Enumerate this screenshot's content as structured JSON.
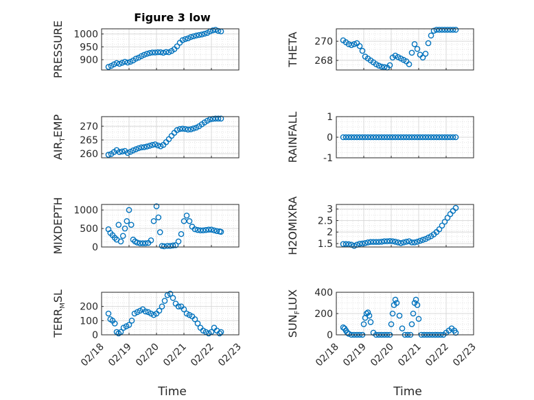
{
  "title": "Figure 3 low",
  "xlabel": "Time",
  "marker_color": "#0072BD",
  "chart_data": [
    {
      "type": "scatter",
      "name": "PRESSURE",
      "ylabel_parts": [
        "PRESSURE"
      ],
      "ylim": [
        860,
        1020
      ],
      "yticks": [
        900,
        950,
        1000
      ],
      "xlim": [
        0,
        5
      ],
      "xtick_labels": [
        "02/18",
        "02/19",
        "02/20",
        "02/21",
        "02/22",
        "02/23"
      ],
      "show_xticklabels": false,
      "x": [
        0.25,
        0.35,
        0.45,
        0.55,
        0.65,
        0.75,
        0.85,
        0.95,
        1.05,
        1.15,
        1.25,
        1.35,
        1.45,
        1.55,
        1.65,
        1.75,
        1.85,
        1.95,
        2.05,
        2.15,
        2.25,
        2.35,
        2.45,
        2.55,
        2.65,
        2.75,
        2.85,
        2.95,
        3.05,
        3.15,
        3.25,
        3.35,
        3.45,
        3.55,
        3.65,
        3.75,
        3.85,
        3.95,
        4.05,
        4.15,
        4.25,
        4.35
      ],
      "y": [
        872,
        876,
        882,
        887,
        884,
        888,
        892,
        889,
        892,
        897,
        904,
        908,
        914,
        919,
        923,
        926,
        928,
        928,
        929,
        929,
        927,
        930,
        929,
        934,
        941,
        952,
        966,
        976,
        980,
        983,
        988,
        991,
        994,
        996,
        998,
        1001,
        1004,
        1010,
        1014,
        1016,
        1012,
        1010
      ]
    },
    {
      "type": "scatter",
      "name": "THETA",
      "ylabel_parts": [
        "THETA"
      ],
      "ylim": [
        267,
        271.3
      ],
      "yticks": [
        268,
        270
      ],
      "xlim": [
        0,
        5
      ],
      "xtick_labels": [
        "02/18",
        "02/19",
        "02/20",
        "02/21",
        "02/22",
        "02/23"
      ],
      "show_xticklabels": false,
      "x": [
        0.25,
        0.35,
        0.45,
        0.55,
        0.65,
        0.75,
        0.85,
        0.95,
        1.05,
        1.15,
        1.25,
        1.35,
        1.45,
        1.55,
        1.65,
        1.75,
        1.85,
        1.95,
        2.05,
        2.15,
        2.25,
        2.35,
        2.45,
        2.55,
        2.65,
        2.75,
        2.85,
        2.95,
        3.05,
        3.15,
        3.25,
        3.35,
        3.45,
        3.55,
        3.65,
        3.75,
        3.85,
        3.95,
        4.05,
        4.15,
        4.25,
        4.35
      ],
      "y": [
        270.1,
        269.9,
        269.7,
        269.6,
        269.7,
        269.8,
        269.5,
        269.0,
        268.4,
        268.2,
        268.0,
        267.8,
        267.6,
        267.45,
        267.35,
        267.3,
        267.25,
        267.5,
        268.3,
        268.5,
        268.35,
        268.2,
        268.05,
        267.9,
        267.6,
        268.8,
        269.7,
        269.2,
        268.6,
        268.3,
        268.7,
        269.8,
        270.6,
        271.1,
        271.2,
        271.2,
        271.2,
        271.2,
        271.2,
        271.2,
        271.2,
        271.2
      ]
    },
    {
      "type": "scatter",
      "name": "AIR_TEMP",
      "ylabel_parts": [
        "AIR",
        "T",
        "EMP"
      ],
      "ylim": [
        258.5,
        273.5
      ],
      "yticks": [
        260,
        265,
        270
      ],
      "xlim": [
        0,
        5
      ],
      "xtick_labels": [
        "02/18",
        "02/19",
        "02/20",
        "02/21",
        "02/22",
        "02/23"
      ],
      "show_xticklabels": false,
      "x": [
        0.25,
        0.35,
        0.45,
        0.55,
        0.65,
        0.75,
        0.85,
        0.95,
        1.05,
        1.15,
        1.25,
        1.35,
        1.45,
        1.55,
        1.65,
        1.75,
        1.85,
        1.95,
        2.05,
        2.15,
        2.25,
        2.35,
        2.45,
        2.55,
        2.65,
        2.75,
        2.85,
        2.95,
        3.05,
        3.15,
        3.25,
        3.35,
        3.45,
        3.55,
        3.65,
        3.75,
        3.85,
        3.95,
        4.05,
        4.15,
        4.25,
        4.35
      ],
      "y": [
        259.6,
        259.9,
        260.6,
        261.3,
        260.6,
        260.8,
        261.0,
        260.3,
        260.7,
        261.2,
        261.6,
        262.0,
        262.3,
        262.4,
        262.6,
        262.9,
        263.2,
        263.4,
        263.0,
        262.7,
        263.2,
        264.2,
        265.3,
        266.5,
        267.6,
        268.6,
        269.0,
        269.1,
        269.0,
        268.8,
        268.9,
        269.2,
        269.5,
        270.0,
        270.7,
        271.4,
        272.0,
        272.5,
        272.7,
        272.8,
        272.8,
        272.8
      ]
    },
    {
      "type": "scatter",
      "name": "RAINFALL",
      "ylabel_parts": [
        "RAINFALL"
      ],
      "ylim": [
        -1,
        1
      ],
      "yticks": [
        -1,
        0,
        1
      ],
      "xlim": [
        0,
        5
      ],
      "xtick_labels": [
        "02/18",
        "02/19",
        "02/20",
        "02/21",
        "02/22",
        "02/23"
      ],
      "show_xticklabels": false,
      "x": [
        0.25,
        0.35,
        0.45,
        0.55,
        0.65,
        0.75,
        0.85,
        0.95,
        1.05,
        1.15,
        1.25,
        1.35,
        1.45,
        1.55,
        1.65,
        1.75,
        1.85,
        1.95,
        2.05,
        2.15,
        2.25,
        2.35,
        2.45,
        2.55,
        2.65,
        2.75,
        2.85,
        2.95,
        3.05,
        3.15,
        3.25,
        3.35,
        3.45,
        3.55,
        3.65,
        3.75,
        3.85,
        3.95,
        4.05,
        4.15,
        4.25,
        4.35
      ],
      "y": [
        0,
        0,
        0,
        0,
        0,
        0,
        0,
        0,
        0,
        0,
        0,
        0,
        0,
        0,
        0,
        0,
        0,
        0,
        0,
        0,
        0,
        0,
        0,
        0,
        0,
        0,
        0,
        0,
        0,
        0,
        0,
        0,
        0,
        0,
        0,
        0,
        0,
        0,
        0,
        0,
        0,
        0
      ]
    },
    {
      "type": "scatter",
      "name": "MIXDEPTH",
      "ylabel_parts": [
        "MIXDEPTH"
      ],
      "ylim": [
        0,
        1150
      ],
      "yticks": [
        0,
        500,
        1000
      ],
      "xlim": [
        0,
        5
      ],
      "xtick_labels": [
        "02/18",
        "02/19",
        "02/20",
        "02/21",
        "02/22",
        "02/23"
      ],
      "show_xticklabels": false,
      "x": [
        0.25,
        0.32,
        0.4,
        0.48,
        0.55,
        0.62,
        0.7,
        0.78,
        0.85,
        0.92,
        1.0,
        1.08,
        1.15,
        1.22,
        1.3,
        1.4,
        1.5,
        1.6,
        1.7,
        1.8,
        1.9,
        2.0,
        2.07,
        2.13,
        2.2,
        2.28,
        2.4,
        2.5,
        2.6,
        2.7,
        2.8,
        2.9,
        3.0,
        3.1,
        3.2,
        3.3,
        3.4,
        3.5,
        3.6,
        3.7,
        3.8,
        3.9,
        4.0,
        4.1,
        4.2,
        4.3,
        4.35
      ],
      "y": [
        480,
        380,
        320,
        250,
        200,
        600,
        150,
        300,
        500,
        700,
        1000,
        600,
        200,
        150,
        120,
        100,
        100,
        100,
        110,
        180,
        700,
        1100,
        800,
        400,
        30,
        20,
        30,
        30,
        40,
        50,
        150,
        350,
        700,
        850,
        700,
        550,
        480,
        460,
        450,
        450,
        460,
        470,
        470,
        450,
        430,
        420,
        410
      ]
    },
    {
      "type": "scatter",
      "name": "H2OMIXRA",
      "ylabel_parts": [
        "H2OMIXRA"
      ],
      "ylim": [
        1.35,
        3.2
      ],
      "yticks": [
        1.5,
        2,
        2.5,
        3
      ],
      "ytick_labels": [
        "1.5",
        "2",
        "2.5",
        "3"
      ],
      "xlim": [
        0,
        5
      ],
      "xtick_labels": [
        "02/18",
        "02/19",
        "02/20",
        "02/21",
        "02/22",
        "02/23"
      ],
      "show_xticklabels": false,
      "x": [
        0.25,
        0.35,
        0.45,
        0.55,
        0.65,
        0.75,
        0.85,
        0.95,
        1.05,
        1.15,
        1.25,
        1.35,
        1.45,
        1.55,
        1.65,
        1.75,
        1.85,
        1.95,
        2.05,
        2.15,
        2.25,
        2.35,
        2.45,
        2.55,
        2.65,
        2.75,
        2.85,
        2.95,
        3.05,
        3.15,
        3.25,
        3.35,
        3.45,
        3.55,
        3.65,
        3.75,
        3.85,
        3.95,
        4.05,
        4.15,
        4.25,
        4.35
      ],
      "y": [
        1.48,
        1.48,
        1.47,
        1.45,
        1.4,
        1.45,
        1.49,
        1.5,
        1.52,
        1.55,
        1.57,
        1.57,
        1.57,
        1.57,
        1.58,
        1.6,
        1.6,
        1.61,
        1.6,
        1.58,
        1.55,
        1.52,
        1.55,
        1.58,
        1.6,
        1.55,
        1.55,
        1.58,
        1.62,
        1.66,
        1.7,
        1.76,
        1.82,
        1.9,
        2.0,
        2.12,
        2.28,
        2.45,
        2.62,
        2.78,
        2.92,
        3.05
      ]
    },
    {
      "type": "scatter",
      "name": "TERR_MSL",
      "ylabel_parts": [
        "TERR",
        "M",
        "SL"
      ],
      "ylim": [
        0,
        300
      ],
      "yticks": [
        0,
        100,
        200
      ],
      "xlim": [
        0,
        5
      ],
      "xtick_labels": [
        "02/18",
        "02/19",
        "02/20",
        "02/21",
        "02/22",
        "02/23"
      ],
      "show_xticklabels": true,
      "x": [
        0.25,
        0.32,
        0.4,
        0.48,
        0.55,
        0.62,
        0.7,
        0.8,
        0.9,
        1.0,
        1.1,
        1.2,
        1.3,
        1.4,
        1.5,
        1.6,
        1.7,
        1.8,
        1.9,
        2.0,
        2.1,
        2.2,
        2.3,
        2.4,
        2.5,
        2.6,
        2.7,
        2.8,
        2.9,
        3.0,
        3.1,
        3.2,
        3.3,
        3.4,
        3.5,
        3.6,
        3.7,
        3.8,
        3.9,
        4.0,
        4.1,
        4.2,
        4.3,
        4.35
      ],
      "y": [
        150,
        110,
        100,
        80,
        20,
        10,
        20,
        50,
        60,
        70,
        100,
        150,
        160,
        170,
        180,
        165,
        160,
        150,
        140,
        150,
        170,
        200,
        240,
        280,
        290,
        260,
        220,
        200,
        200,
        180,
        150,
        140,
        130,
        110,
        80,
        50,
        30,
        20,
        10,
        20,
        50,
        30,
        10,
        20
      ]
    },
    {
      "type": "scatter",
      "name": "SUN_FLUX",
      "ylabel_parts": [
        "SUN",
        "F",
        "LUX"
      ],
      "ylim": [
        0,
        400
      ],
      "yticks": [
        0,
        200,
        400
      ],
      "xlim": [
        0,
        5
      ],
      "xtick_labels": [
        "02/18",
        "02/19",
        "02/20",
        "02/21",
        "02/22",
        "02/23"
      ],
      "show_xticklabels": true,
      "x": [
        0.25,
        0.3,
        0.35,
        0.4,
        0.45,
        0.55,
        0.65,
        0.75,
        0.85,
        0.95,
        1.0,
        1.05,
        1.1,
        1.15,
        1.2,
        1.25,
        1.35,
        1.45,
        1.55,
        1.65,
        1.75,
        1.85,
        1.95,
        2.0,
        2.05,
        2.1,
        2.15,
        2.2,
        2.3,
        2.4,
        2.5,
        2.6,
        2.7,
        2.75,
        2.8,
        2.85,
        2.9,
        2.95,
        3.0,
        3.1,
        3.2,
        3.3,
        3.4,
        3.5,
        3.6,
        3.7,
        3.8,
        3.9,
        4.0,
        4.1,
        4.2,
        4.3,
        4.35
      ],
      "y": [
        70,
        60,
        40,
        20,
        10,
        0,
        0,
        0,
        0,
        0,
        100,
        160,
        200,
        210,
        180,
        120,
        20,
        0,
        0,
        0,
        0,
        0,
        0,
        100,
        200,
        280,
        330,
        300,
        180,
        60,
        0,
        0,
        0,
        100,
        200,
        300,
        330,
        280,
        150,
        0,
        0,
        0,
        0,
        0,
        0,
        0,
        0,
        0,
        20,
        40,
        60,
        40,
        20
      ]
    }
  ]
}
